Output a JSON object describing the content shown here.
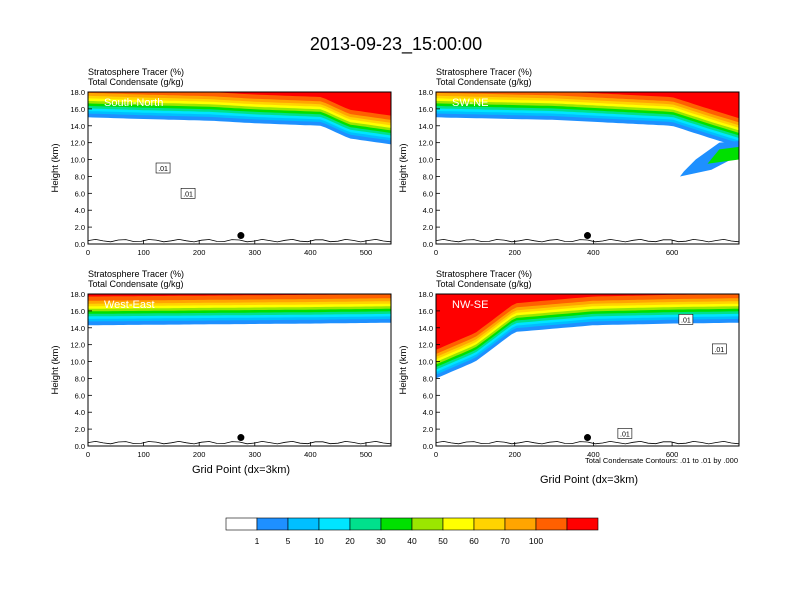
{
  "title": "2013-09-23_15:00:00",
  "panel_header": {
    "line1": "Stratosphere Tracer   (%)",
    "line2": "Total Condensate   (g/kg)"
  },
  "axis_label_y": "Height (km)",
  "axis_label_x": "Grid Point (dx=3km)",
  "contour_note": "Total Condensate Contours: .01 to .01 by .000",
  "colors": {
    "fill_levels": [
      "#ffffff",
      "#1e90ff",
      "#00bfff",
      "#00e5ff",
      "#00e08c",
      "#00e000",
      "#9be600",
      "#ffff00",
      "#ffd400",
      "#ffa500",
      "#ff6000",
      "#ff0000"
    ],
    "dot": "#000000"
  },
  "chart_data": [
    {
      "type": "heatmap",
      "id": "south-north",
      "label": "South-North",
      "ylim": [
        0,
        18
      ],
      "xlim": [
        0,
        545
      ],
      "xticks": [
        "0",
        "100",
        "200",
        "300",
        "400",
        "500"
      ],
      "xtick_values": [
        0,
        100,
        200,
        300,
        400,
        500
      ],
      "yticks": [
        "0.0",
        "2.0",
        "4.0",
        "6.0",
        "8.0",
        "10.0",
        "12.0",
        "14.0",
        "16.0",
        "18.0"
      ],
      "tropopause_profile_km": [
        [
          0,
          15.0
        ],
        [
          100,
          14.8
        ],
        [
          220,
          14.6
        ],
        [
          300,
          14.3
        ],
        [
          420,
          14.0
        ],
        [
          470,
          12.5
        ],
        [
          545,
          11.8
        ]
      ],
      "marker": {
        "x": 275,
        "y": 1.0
      },
      "contour_labels": [
        {
          "text": ".01",
          "x": 135,
          "y": 9.0
        },
        {
          "text": ".01",
          "x": 180,
          "y": 6.0
        }
      ]
    },
    {
      "type": "heatmap",
      "id": "sw-ne",
      "label": "SW-NE",
      "ylim": [
        0,
        18
      ],
      "xlim": [
        0,
        770
      ],
      "xticks": [
        "0",
        "200",
        "400",
        "600"
      ],
      "xtick_values": [
        0,
        200,
        400,
        600
      ],
      "yticks": [
        "0.0",
        "2.0",
        "4.0",
        "6.0",
        "8.0",
        "10.0",
        "12.0",
        "14.0",
        "16.0",
        "18.0"
      ],
      "tropopause_profile_km": [
        [
          0,
          15.0
        ],
        [
          300,
          14.7
        ],
        [
          600,
          14.0
        ],
        [
          700,
          12.5
        ],
        [
          770,
          11.5
        ]
      ],
      "marker": {
        "x": 385,
        "y": 1.0
      },
      "contour_labels": []
    },
    {
      "type": "heatmap",
      "id": "west-east",
      "label": "West-East",
      "ylim": [
        0,
        18
      ],
      "xlim": [
        0,
        545
      ],
      "xticks": [
        "0",
        "100",
        "200",
        "300",
        "400",
        "500"
      ],
      "xtick_values": [
        0,
        100,
        200,
        300,
        400,
        500
      ],
      "yticks": [
        "0.0",
        "2.0",
        "4.0",
        "6.0",
        "8.0",
        "10.0",
        "12.0",
        "14.0",
        "16.0",
        "18.0"
      ],
      "tropopause_profile_km": [
        [
          0,
          14.3
        ],
        [
          200,
          14.4
        ],
        [
          400,
          14.5
        ],
        [
          545,
          14.6
        ]
      ],
      "marker": {
        "x": 275,
        "y": 1.0
      },
      "contour_labels": []
    },
    {
      "type": "heatmap",
      "id": "nw-se",
      "label": "NW-SE",
      "ylim": [
        0,
        18
      ],
      "xlim": [
        0,
        770
      ],
      "xticks": [
        "0",
        "200",
        "400",
        "600"
      ],
      "xtick_values": [
        0,
        200,
        400,
        600
      ],
      "yticks": [
        "0.0",
        "2.0",
        "4.0",
        "6.0",
        "8.0",
        "10.0",
        "12.0",
        "14.0",
        "16.0",
        "18.0"
      ],
      "tropopause_profile_km": [
        [
          0,
          8.0
        ],
        [
          100,
          10.0
        ],
        [
          200,
          13.5
        ],
        [
          400,
          14.3
        ],
        [
          600,
          14.5
        ],
        [
          770,
          14.6
        ]
      ],
      "marker": {
        "x": 385,
        "y": 1.0
      },
      "contour_labels": [
        {
          "text": ".01",
          "x": 635,
          "y": 15.0
        },
        {
          "text": ".01",
          "x": 720,
          "y": 11.5
        },
        {
          "text": ".01",
          "x": 480,
          "y": 1.5
        }
      ]
    }
  ],
  "colorbar": {
    "labels": [
      "1",
      "5",
      "10",
      "20",
      "30",
      "40",
      "50",
      "60",
      "70",
      "100"
    ]
  }
}
